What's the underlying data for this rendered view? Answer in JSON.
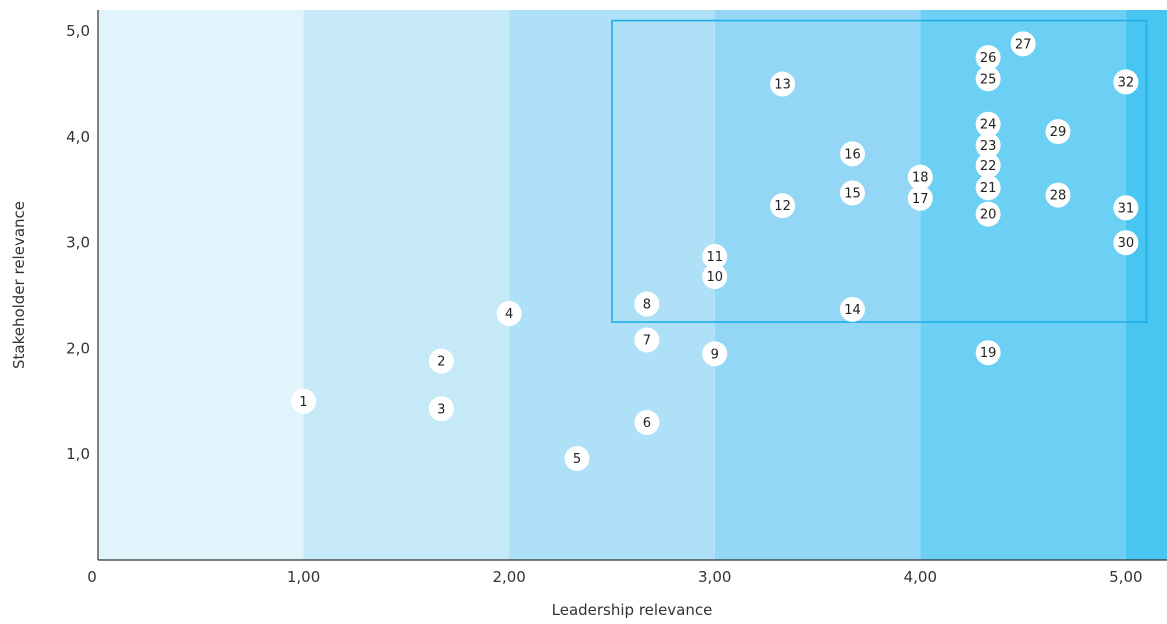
{
  "chart_data": {
    "type": "scatter",
    "xlabel": "Leadership relevance",
    "ylabel": "Stakeholder relevance",
    "xlim": [
      0,
      5.2
    ],
    "ylim": [
      0,
      5.2
    ],
    "x_ticks": [
      {
        "value": 0,
        "label": "0"
      },
      {
        "value": 1,
        "label": "1,00"
      },
      {
        "value": 2,
        "label": "2,00"
      },
      {
        "value": 3,
        "label": "3,00"
      },
      {
        "value": 4,
        "label": "4,00"
      },
      {
        "value": 5,
        "label": "5,00"
      }
    ],
    "y_ticks": [
      {
        "value": 1,
        "label": "1,0"
      },
      {
        "value": 2,
        "label": "2,0"
      },
      {
        "value": 3,
        "label": "3,0"
      },
      {
        "value": 4,
        "label": "4,0"
      },
      {
        "value": 5,
        "label": "5,0"
      }
    ],
    "background_bands": [
      {
        "from": 0,
        "to": 1,
        "color": "#e2f4fb"
      },
      {
        "from": 1,
        "to": 2,
        "color": "#c6e9f8"
      },
      {
        "from": 2,
        "to": 3,
        "color": "#aee0f8"
      },
      {
        "from": 3,
        "to": 4,
        "color": "#93d6f5"
      },
      {
        "from": 4,
        "to": 5,
        "color": "#6ccff4"
      },
      {
        "from": 5,
        "to": 5.2,
        "color": "#48c5f1"
      }
    ],
    "highlight_box": {
      "x0": 2.5,
      "x1": 5.1,
      "y0": 2.25,
      "y1": 5.1,
      "color": "#1fb0e6"
    },
    "points": [
      {
        "label": "1",
        "x": 1.0,
        "y": 1.5
      },
      {
        "label": "2",
        "x": 1.67,
        "y": 1.88
      },
      {
        "label": "3",
        "x": 1.67,
        "y": 1.43
      },
      {
        "label": "4",
        "x": 2.0,
        "y": 2.33
      },
      {
        "label": "5",
        "x": 2.33,
        "y": 0.96
      },
      {
        "label": "6",
        "x": 2.67,
        "y": 1.3
      },
      {
        "label": "7",
        "x": 2.67,
        "y": 2.08
      },
      {
        "label": "8",
        "x": 2.67,
        "y": 2.42
      },
      {
        "label": "9",
        "x": 3.0,
        "y": 1.95
      },
      {
        "label": "10",
        "x": 3.0,
        "y": 2.68
      },
      {
        "label": "11",
        "x": 3.0,
        "y": 2.87
      },
      {
        "label": "12",
        "x": 3.33,
        "y": 3.35
      },
      {
        "label": "13",
        "x": 3.33,
        "y": 4.5
      },
      {
        "label": "14",
        "x": 3.67,
        "y": 2.37
      },
      {
        "label": "15",
        "x": 3.67,
        "y": 3.47
      },
      {
        "label": "16",
        "x": 3.67,
        "y": 3.84
      },
      {
        "label": "17",
        "x": 4.0,
        "y": 3.42
      },
      {
        "label": "18",
        "x": 4.0,
        "y": 3.62
      },
      {
        "label": "19",
        "x": 4.33,
        "y": 1.96
      },
      {
        "label": "20",
        "x": 4.33,
        "y": 3.27
      },
      {
        "label": "21",
        "x": 4.33,
        "y": 3.52
      },
      {
        "label": "22",
        "x": 4.33,
        "y": 3.73
      },
      {
        "label": "23",
        "x": 4.33,
        "y": 3.92
      },
      {
        "label": "24",
        "x": 4.33,
        "y": 4.12
      },
      {
        "label": "25",
        "x": 4.33,
        "y": 4.55
      },
      {
        "label": "26",
        "x": 4.33,
        "y": 4.75
      },
      {
        "label": "27",
        "x": 4.5,
        "y": 4.88
      },
      {
        "label": "28",
        "x": 4.67,
        "y": 3.45
      },
      {
        "label": "29",
        "x": 4.67,
        "y": 4.05
      },
      {
        "label": "30",
        "x": 5.0,
        "y": 3.0
      },
      {
        "label": "31",
        "x": 5.0,
        "y": 3.33
      },
      {
        "label": "32",
        "x": 5.0,
        "y": 4.52
      }
    ],
    "grid": false,
    "legend": "none"
  },
  "colors": {
    "marker_fill": "#ffffff",
    "axis": "#333333",
    "text": "#333333"
  }
}
